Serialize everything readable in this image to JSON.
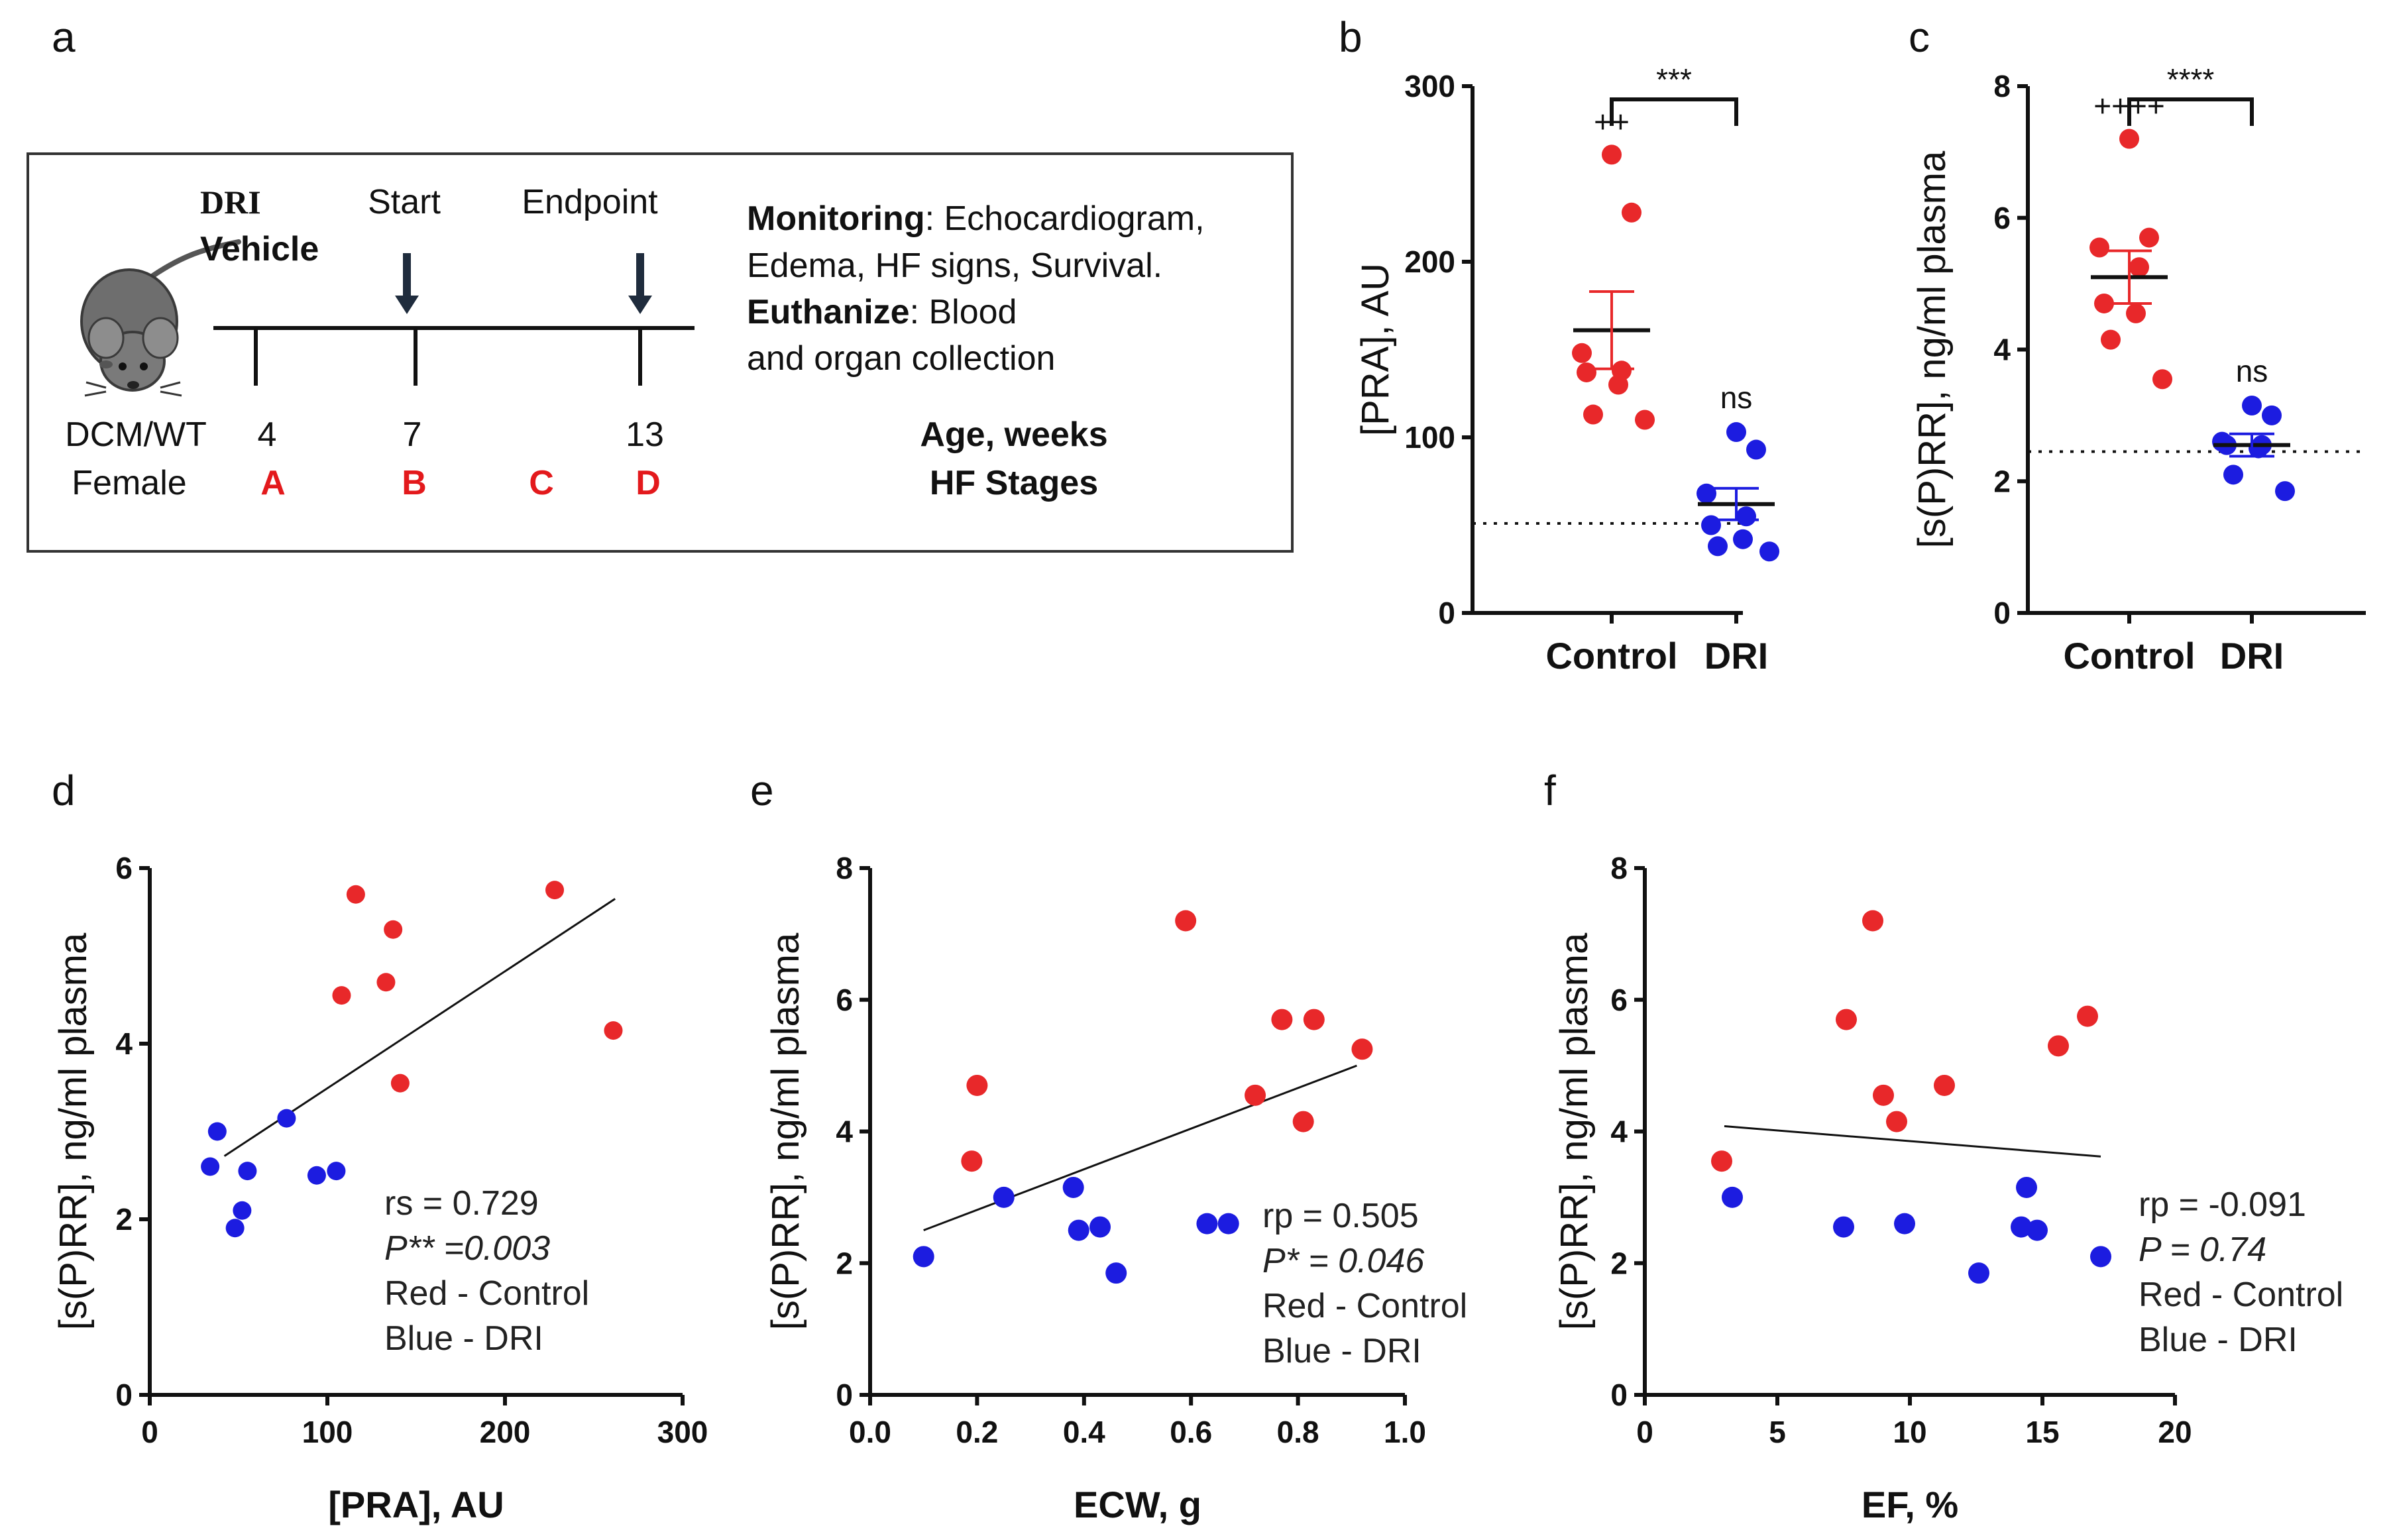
{
  "colors": {
    "control": "#e8282a",
    "dri": "#1c1ce0",
    "axis": "#111111",
    "scheme_red": "#e3191c"
  },
  "scheme": {
    "panel_label": "a",
    "dri_label": "DRI",
    "vehicle_label": "Vehicle",
    "start_label": "Start",
    "endpoint_label": "Endpoint",
    "week_values": [
      "4",
      "7",
      "13"
    ],
    "row1_label": "DCM/WT",
    "row2_label": "Female",
    "stages": [
      "A",
      "B",
      "C",
      "D"
    ],
    "monitoring_title": "Monitoring",
    "monitoring_text_1": ": Echocardiogram,",
    "monitoring_text_2": "Edema, HF signs, Survival.",
    "euthanize_title": "Euthanize",
    "euthanize_text_1": ": Blood",
    "euthanize_text_2": "and organ collection",
    "age_label": "Age, weeks",
    "stage_label": "HF Stages",
    "mouse_icon": "mouse-icon",
    "arrow_icon": "down-arrow-icon"
  },
  "chart_data": [
    {
      "id": "b",
      "panel_label": "b",
      "type": "scatter",
      "categories": [
        "Control",
        "DRI"
      ],
      "ylabel": "[PRA], AU",
      "ylim": [
        0,
        300
      ],
      "yticks": [
        "0",
        "100",
        "200",
        "300"
      ],
      "reference_line": 51,
      "series": [
        {
          "name": "Control",
          "values": [
            261,
            228,
            148,
            138,
            137,
            130,
            113,
            110
          ],
          "mean": 161,
          "sem_upper": 183,
          "sem_lower": 139
        },
        {
          "name": "DRI",
          "values": [
            103,
            93,
            68,
            55,
            50,
            42,
            38,
            35
          ],
          "mean": 62,
          "sem_upper": 71,
          "sem_lower": 53
        }
      ],
      "significance": "***",
      "annotations": [
        "++",
        "ns"
      ]
    },
    {
      "id": "c",
      "panel_label": "c",
      "type": "scatter",
      "categories": [
        "Control",
        "DRI"
      ],
      "ylabel": "[s(P)RR], ng/ml plasma",
      "ylim": [
        0,
        8
      ],
      "yticks": [
        "0",
        "2",
        "4",
        "6",
        "8"
      ],
      "reference_line": 2.45,
      "series": [
        {
          "name": "Control",
          "values": [
            7.2,
            5.7,
            5.55,
            5.25,
            4.7,
            4.55,
            4.15,
            3.55
          ],
          "mean": 5.1,
          "sem_upper": 5.5,
          "sem_lower": 4.7
        },
        {
          "name": "DRI",
          "values": [
            3.15,
            3.0,
            2.6,
            2.55,
            2.55,
            2.5,
            2.1,
            1.85
          ],
          "mean": 2.55,
          "sem_upper": 2.72,
          "sem_lower": 2.38
        }
      ],
      "significance": "****",
      "annotations": [
        "++++",
        "ns"
      ]
    },
    {
      "id": "d",
      "panel_label": "d",
      "type": "scatter",
      "xlabel": "[PRA], AU",
      "ylabel": "[s(P)RR], ng/ml plasma",
      "xlim": [
        0,
        300
      ],
      "ylim": [
        0,
        6
      ],
      "xticks": [
        "0",
        "100",
        "200",
        "300"
      ],
      "yticks": [
        "0",
        "2",
        "4",
        "6"
      ],
      "series": [
        {
          "name": "Control",
          "x": [
            108,
            116,
            133,
            137,
            141,
            228,
            261
          ],
          "y": [
            4.55,
            5.7,
            4.7,
            5.3,
            3.55,
            5.75,
            4.15
          ]
        },
        {
          "name": "DRI",
          "x": [
            34,
            38,
            48,
            52,
            55,
            77,
            94,
            105
          ],
          "y": [
            2.6,
            3.0,
            1.9,
            2.1,
            2.55,
            3.15,
            2.5,
            2.55
          ]
        }
      ],
      "fit_line": {
        "x": [
          42,
          262
        ],
        "y": [
          2.72,
          5.65
        ]
      },
      "stat_label": "rs = 0.729",
      "p_label": "P** =0.003",
      "legend_red": "Red - Control",
      "legend_blue": "Blue - DRI"
    },
    {
      "id": "e",
      "panel_label": "e",
      "type": "scatter",
      "xlabel": "ECW, g",
      "ylabel": "[s(P)RR], ng/ml plasma",
      "xlim": [
        0,
        1.0
      ],
      "ylim": [
        0,
        8
      ],
      "xticks": [
        "0.0",
        "0.2",
        "0.4",
        "0.6",
        "0.8",
        "1.0"
      ],
      "yticks": [
        "0",
        "2",
        "4",
        "6",
        "8"
      ],
      "series": [
        {
          "name": "Control",
          "x": [
            0.19,
            0.2,
            0.59,
            0.72,
            0.77,
            0.81,
            0.83,
            0.92
          ],
          "y": [
            3.55,
            4.7,
            7.2,
            4.55,
            5.7,
            4.15,
            5.7,
            5.25
          ]
        },
        {
          "name": "DRI",
          "x": [
            0.1,
            0.25,
            0.38,
            0.39,
            0.43,
            0.46,
            0.63,
            0.67
          ],
          "y": [
            2.1,
            3.0,
            3.15,
            2.5,
            2.55,
            1.85,
            2.6,
            2.6
          ]
        }
      ],
      "fit_line": {
        "x": [
          0.1,
          0.91
        ],
        "y": [
          2.5,
          5.0
        ]
      },
      "stat_label": "rp = 0.505",
      "p_label": "P* = 0.046",
      "legend_red": "Red - Control",
      "legend_blue": "Blue - DRI"
    },
    {
      "id": "f",
      "panel_label": "f",
      "type": "scatter",
      "xlabel": "EF, %",
      "ylabel": "[s(P)RR], ng/ml plasma",
      "xlim": [
        0,
        20
      ],
      "ylim": [
        0,
        8
      ],
      "xticks": [
        "0",
        "5",
        "10",
        "15",
        "20"
      ],
      "yticks": [
        "0",
        "2",
        "4",
        "6",
        "8"
      ],
      "series": [
        {
          "name": "Control",
          "x": [
            2.9,
            7.6,
            8.6,
            9.0,
            9.5,
            11.3,
            15.6,
            16.7
          ],
          "y": [
            3.55,
            5.7,
            7.2,
            4.55,
            4.15,
            4.7,
            5.3,
            5.75
          ]
        },
        {
          "name": "DRI",
          "x": [
            3.3,
            7.5,
            9.8,
            12.6,
            14.2,
            14.4,
            14.8,
            17.2
          ],
          "y": [
            3.0,
            2.55,
            2.6,
            1.85,
            2.55,
            3.15,
            2.5,
            2.1
          ]
        }
      ],
      "fit_line": {
        "x": [
          3.0,
          17.2
        ],
        "y": [
          4.08,
          3.62
        ]
      },
      "stat_label": "rp = -0.091",
      "p_label": "P = 0.74",
      "legend_red": "Red - Control",
      "legend_blue": "Blue - DRI"
    }
  ]
}
